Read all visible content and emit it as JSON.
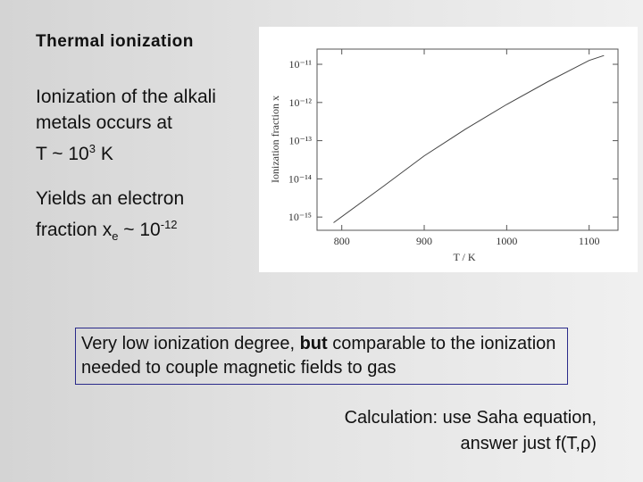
{
  "slide": {
    "title": "Thermal ionization",
    "para1": {
      "lines": [
        "Ionization of the alkali",
        "metals occurs at"
      ],
      "last_pre": "T ~ 10",
      "last_sup": "3",
      "last_post": " K"
    },
    "para2": {
      "line1": "Yields an electron",
      "pre": "fraction x",
      "sub": "e",
      "mid": " ~ 10",
      "sup": "-12"
    },
    "box": {
      "pre": "Very low ionization degree, ",
      "bold": "but",
      "post": " comparable to the ionization needed to couple magnetic fields to gas"
    },
    "note": [
      "Calculation: use Saha equation,",
      "answer just f(T,ρ)"
    ]
  },
  "chart_data": {
    "type": "line",
    "x_label": "T / K",
    "y_label": "Ionization fraction  x",
    "log_y": true,
    "x": [
      790,
      850,
      900,
      950,
      1000,
      1050,
      1100,
      1118
    ],
    "series": [
      {
        "color": "#444444",
        "values": [
          7.1e-16,
          6.3e-15,
          4e-14,
          2e-13,
          8.9e-13,
          3.5e-12,
          1.26e-11,
          1.7e-11
        ]
      }
    ],
    "xlim": [
      770,
      1135
    ],
    "xticks": [
      800,
      900,
      1000,
      1100
    ],
    "ylim": [
      4.5e-16,
      2.5e-11
    ],
    "yticks": [
      {
        "value": 1e-11,
        "label": "10⁻¹¹"
      },
      {
        "value": 1e-12,
        "label": "10⁻¹²"
      },
      {
        "value": 1e-13,
        "label": "10⁻¹³"
      },
      {
        "value": 1e-14,
        "label": "10⁻¹⁴"
      },
      {
        "value": 1e-15,
        "label": "10⁻¹⁵"
      }
    ]
  }
}
